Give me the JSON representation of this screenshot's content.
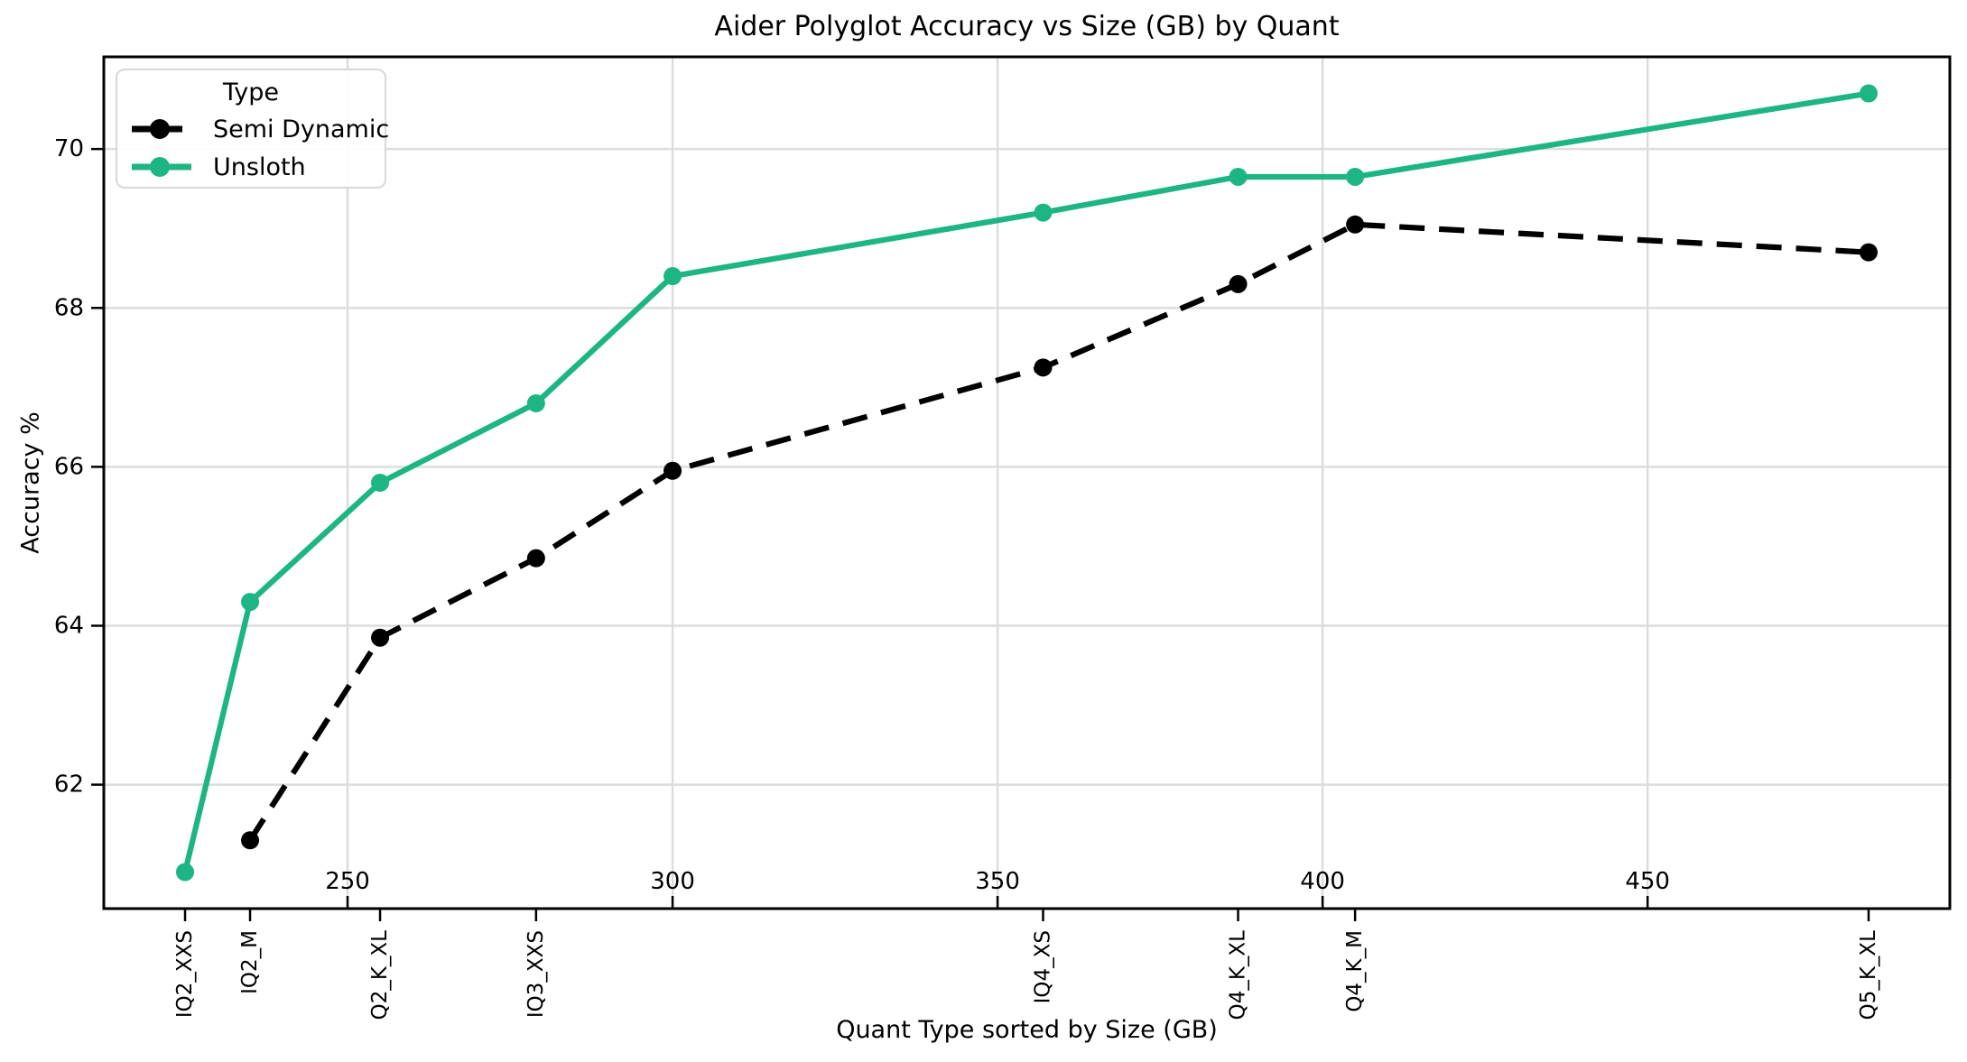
{
  "chart_data": {
    "type": "line",
    "title": "Aider Polyglot Accuracy vs Size (GB) by Quant",
    "xlabel": "Quant Type sorted by Size (GB)",
    "ylabel": "Accuracy %",
    "grid": true,
    "x_axis": {
      "unit": "GB",
      "range": [
        212.5,
        496.5
      ],
      "numeric_ticks": [
        250,
        300,
        350,
        400,
        450
      ]
    },
    "y_axis": {
      "range": [
        60.44,
        71.16
      ],
      "ticks": [
        62,
        64,
        66,
        68,
        70
      ]
    },
    "category_ticks": [
      {
        "label": "IQ2_XXS",
        "gb": 225
      },
      {
        "label": "IQ2_M",
        "gb": 235
      },
      {
        "label": "Q2_K_XL",
        "gb": 255
      },
      {
        "label": "IQ3_XXS",
        "gb": 279
      },
      {
        "label": "IQ4_XS",
        "gb": 357
      },
      {
        "label": "Q4_K_XL",
        "gb": 387
      },
      {
        "label": "Q4_K_M",
        "gb": 405
      },
      {
        "label": "Q5_K_XL",
        "gb": 484
      }
    ],
    "legend": {
      "title": "Type",
      "position": "upper left"
    },
    "series": [
      {
        "name": "Semi Dynamic",
        "color": "#000000",
        "style": "dashed",
        "points": [
          {
            "gb": 235,
            "acc": 61.3
          },
          {
            "gb": 255,
            "acc": 63.85
          },
          {
            "gb": 279,
            "acc": 64.85
          },
          {
            "gb": 300,
            "acc": 65.95
          },
          {
            "gb": 357,
            "acc": 67.25
          },
          {
            "gb": 387,
            "acc": 68.3
          },
          {
            "gb": 405,
            "acc": 69.05
          },
          {
            "gb": 484,
            "acc": 68.7
          }
        ]
      },
      {
        "name": "Unsloth",
        "color": "#1db584",
        "style": "solid",
        "points": [
          {
            "gb": 225,
            "acc": 60.9
          },
          {
            "gb": 235,
            "acc": 64.3
          },
          {
            "gb": 255,
            "acc": 65.8
          },
          {
            "gb": 279,
            "acc": 66.8
          },
          {
            "gb": 300,
            "acc": 68.4
          },
          {
            "gb": 357,
            "acc": 69.2
          },
          {
            "gb": 387,
            "acc": 69.65
          },
          {
            "gb": 405,
            "acc": 69.65
          },
          {
            "gb": 484,
            "acc": 70.7
          }
        ]
      }
    ],
    "colors": {
      "grid": "#dcdcdc",
      "spine": "#000000",
      "background": "#ffffff"
    }
  }
}
